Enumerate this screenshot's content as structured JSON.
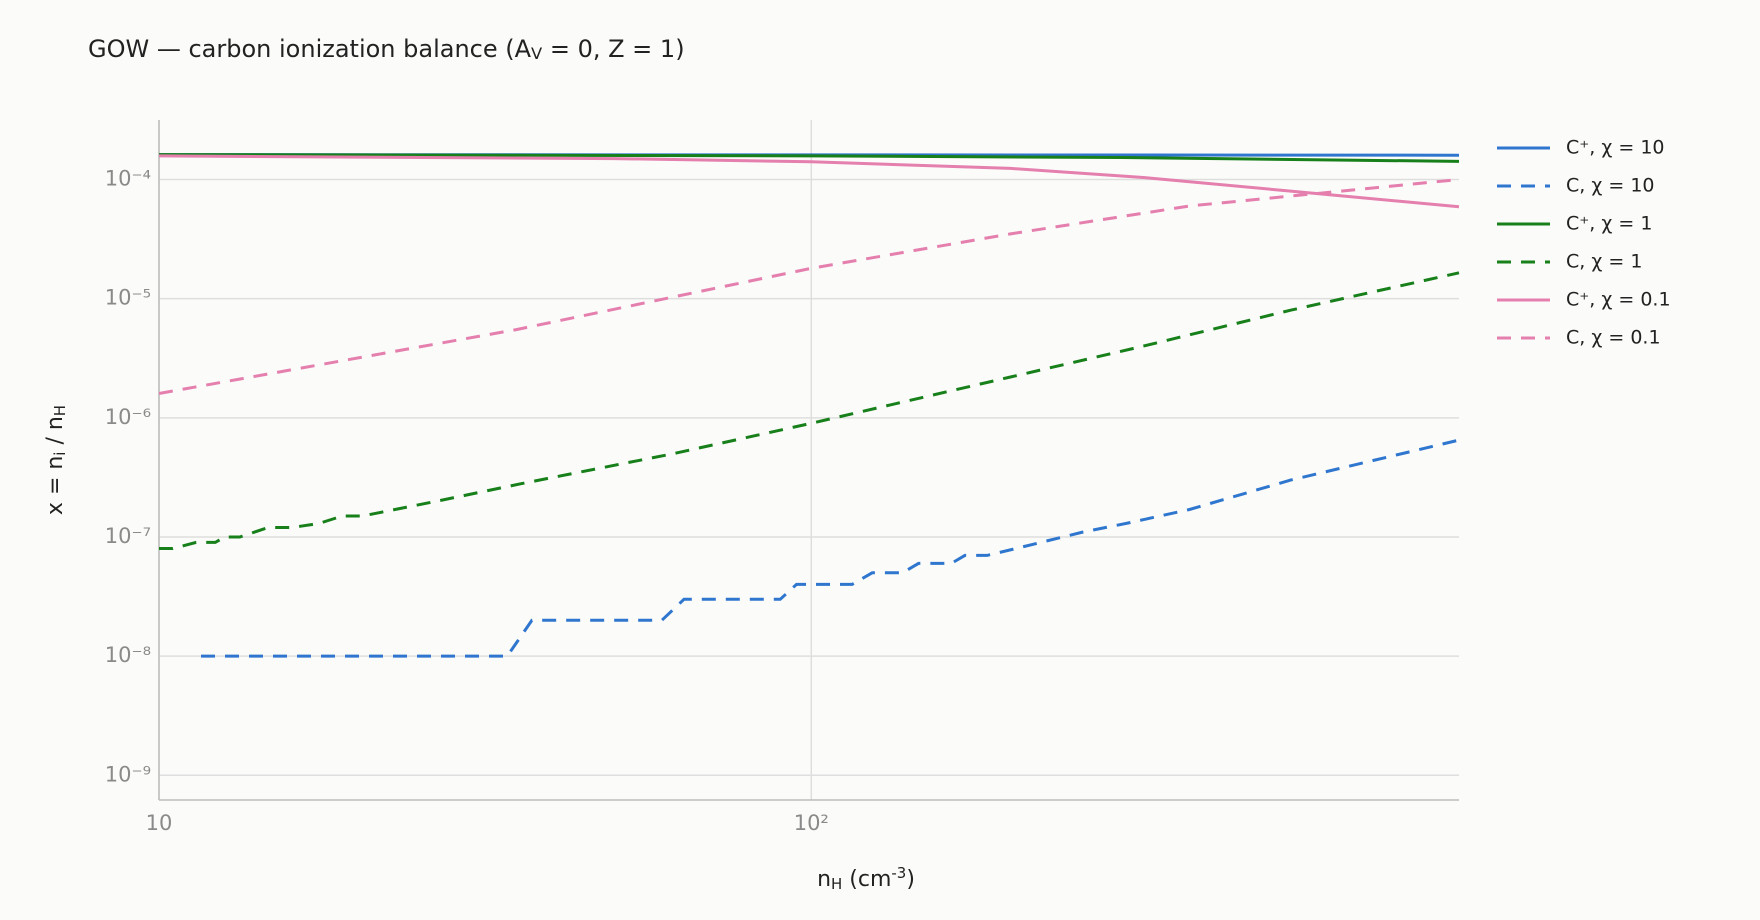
{
  "chart_data": {
    "type": "line",
    "title": [
      {
        "text": "GOW — carbon ionization balance (A"
      },
      {
        "sub": "V"
      },
      {
        "text": " = 0, Z = 1)"
      }
    ],
    "xlabel": [
      {
        "text": "n"
      },
      {
        "sub": "H"
      },
      {
        "text": "  (cm"
      },
      {
        "sup": "-3"
      },
      {
        "text": ")"
      }
    ],
    "ylabel": [
      {
        "text": "x = n"
      },
      {
        "sub": "i"
      },
      {
        "text": " / n"
      },
      {
        "sub": "H"
      }
    ],
    "xlog": true,
    "ylog": true,
    "grid": true,
    "xlim": [
      10,
      984
    ],
    "xticks": [
      10,
      {
        "value": 100,
        "label": "10²"
      }
    ],
    "ylim": [
      6.2e-10,
      0.000316
    ],
    "yticks": [
      {
        "value": 0.0001,
        "label": "10⁻⁴"
      },
      {
        "value": 1e-05,
        "label": "10⁻⁵"
      },
      {
        "value": 1e-06,
        "label": "10⁻⁶"
      },
      {
        "value": 1e-07,
        "label": "10⁻⁷"
      },
      {
        "value": 1e-08,
        "label": "10⁻⁸"
      },
      {
        "value": 1e-09,
        "label": "10⁻⁹"
      }
    ],
    "legend": "outside-right",
    "series": [
      {
        "name": "C⁺, χ = 10",
        "color": "#2f76cf",
        "dash": false,
        "x": [
          10,
          100,
          984
        ],
        "values": [
          0.000162,
          0.000161,
          0.00016
        ]
      },
      {
        "name": "C, χ = 10",
        "color": "#2f76cf",
        "dash": true,
        "x": [
          11.6,
          34.2,
          37.3,
          59,
          63.8,
          89.6,
          94.9,
          115.5,
          124,
          138,
          146,
          164,
          172,
          186,
          206,
          261,
          304,
          380,
          543,
          984
        ],
        "values": [
          1e-08,
          1e-08,
          2e-08,
          2e-08,
          3e-08,
          3e-08,
          4e-08,
          4e-08,
          5e-08,
          5e-08,
          6e-08,
          6e-08,
          7e-08,
          7e-08,
          8e-08,
          1.1e-07,
          1.3e-07,
          1.7e-07,
          3e-07,
          6.5e-07
        ]
      },
      {
        "name": "C⁺, χ = 1",
        "color": "#17801a",
        "dash": false,
        "x": [
          10,
          100,
          300,
          984
        ],
        "values": [
          0.000162,
          0.000158,
          0.000153,
          0.000142
        ]
      },
      {
        "name": "C, χ = 1",
        "color": "#17801a",
        "dash": true,
        "x": [
          10,
          10.5,
          11.4,
          12.2,
          12.6,
          13.3,
          14.7,
          16,
          17.6,
          19.1,
          20.5,
          26.7,
          35.9,
          61.4,
          100,
          202,
          323,
          543,
          984
        ],
        "values": [
          8e-08,
          8e-08,
          9e-08,
          9e-08,
          1e-07,
          1e-07,
          1.2e-07,
          1.2e-07,
          1.3e-07,
          1.5e-07,
          1.5e-07,
          2e-07,
          2.8e-07,
          5e-07,
          9e-07,
          2.2e-06,
          4e-06,
          8e-06,
          1.65e-05
        ]
      },
      {
        "name": "C⁺, χ = 0.1",
        "color": "#e47fae",
        "dash": false,
        "x": [
          10,
          50,
          100,
          202,
          323,
          543,
          984
        ],
        "values": [
          0.000158,
          0.00015,
          0.000141,
          0.000124,
          0.000104,
          8e-05,
          5.9e-05
        ]
      },
      {
        "name": "C, χ = 0.1",
        "color": "#e47fae",
        "dash": true,
        "x": [
          10,
          35.3,
          100,
          202,
          380,
          984
        ],
        "values": [
          1.6e-06,
          5.5e-06,
          1.8e-05,
          3.5e-05,
          6e-05,
          0.0001
        ]
      }
    ]
  }
}
